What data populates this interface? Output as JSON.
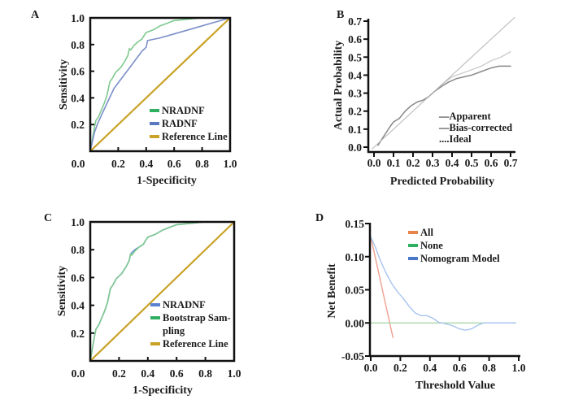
{
  "chart_data": [
    {
      "id": "A",
      "type": "line",
      "panel_label": "A",
      "title": "",
      "xlabel": "1-Specificity",
      "ylabel": "Sensitivity",
      "xlim": [
        0,
        1
      ],
      "ylim": [
        0,
        1
      ],
      "x_ticks": [
        "0.0",
        "0.2",
        "0.4",
        "0.6",
        "0.8",
        "1.0"
      ],
      "y_ticks": [
        "0.2",
        "0.4",
        "0.6",
        "0.8",
        "1.0"
      ],
      "legend_position": "bottom-right",
      "series": [
        {
          "name": "NRADNF",
          "color": "#7fc98f",
          "x": [
            0,
            0.03,
            0.04,
            0.06,
            0.08,
            0.1,
            0.12,
            0.14,
            0.16,
            0.18,
            0.2,
            0.22,
            0.25,
            0.27,
            0.28,
            0.29,
            0.31,
            0.34,
            0.37,
            0.38,
            0.4,
            0.45,
            0.5,
            0.55,
            0.6,
            0.7,
            0.8,
            0.9,
            1.0
          ],
          "y": [
            0,
            0.18,
            0.23,
            0.26,
            0.31,
            0.36,
            0.42,
            0.52,
            0.55,
            0.59,
            0.61,
            0.63,
            0.68,
            0.72,
            0.77,
            0.76,
            0.79,
            0.82,
            0.84,
            0.86,
            0.89,
            0.91,
            0.94,
            0.96,
            0.98,
            0.99,
            1.0,
            1.0,
            1.0
          ]
        },
        {
          "name": "RADNF",
          "color": "#7b8fca",
          "x": [
            0,
            0.03,
            0.05,
            0.08,
            0.12,
            0.17,
            0.22,
            0.27,
            0.32,
            0.37,
            0.4,
            0.41,
            0.5,
            0.6,
            0.7,
            0.8,
            0.9,
            1.0
          ],
          "y": [
            0,
            0.14,
            0.2,
            0.27,
            0.36,
            0.47,
            0.54,
            0.61,
            0.68,
            0.75,
            0.78,
            0.83,
            0.85,
            0.88,
            0.91,
            0.94,
            0.97,
            1.0
          ]
        },
        {
          "name": "Reference Line",
          "color": "#c9a227",
          "x": [
            0,
            1
          ],
          "y": [
            0,
            1
          ]
        }
      ]
    },
    {
      "id": "B",
      "type": "line",
      "panel_label": "B",
      "title": "",
      "xlabel": "Predicted Probability",
      "ylabel": "Actual Probability",
      "xlim": [
        0,
        0.7
      ],
      "ylim": [
        0,
        0.7
      ],
      "x_ticks": [
        "0.0",
        "0.1",
        "0.2",
        "0.3",
        "0.4",
        "0.5",
        "0.6",
        "0.7"
      ],
      "y_ticks": [
        "0.0",
        "0.1",
        "0.2",
        "0.3",
        "0.4",
        "0.5",
        "0.6",
        "0.7"
      ],
      "legend_position": "bottom-right",
      "series": [
        {
          "name": "Apparent",
          "legend_text": "—Apparent",
          "color": "#c8c8c8",
          "x": [
            0.02,
            0.05,
            0.08,
            0.1,
            0.13,
            0.16,
            0.19,
            0.22,
            0.25,
            0.28,
            0.31,
            0.35,
            0.4,
            0.45,
            0.5,
            0.55,
            0.6,
            0.65,
            0.7
          ],
          "y": [
            0.01,
            0.06,
            0.11,
            0.14,
            0.16,
            0.2,
            0.23,
            0.25,
            0.26,
            0.28,
            0.31,
            0.35,
            0.39,
            0.41,
            0.43,
            0.45,
            0.48,
            0.5,
            0.53
          ]
        },
        {
          "name": "Bias-corrected",
          "legend_text": "—Bias-corrected",
          "color": "#8a8a8a",
          "x": [
            0.02,
            0.05,
            0.08,
            0.1,
            0.13,
            0.16,
            0.19,
            0.22,
            0.25,
            0.28,
            0.31,
            0.35,
            0.38,
            0.42,
            0.46,
            0.5,
            0.55,
            0.6,
            0.64,
            0.7
          ],
          "y": [
            0.01,
            0.06,
            0.11,
            0.14,
            0.16,
            0.2,
            0.23,
            0.25,
            0.26,
            0.28,
            0.31,
            0.34,
            0.36,
            0.38,
            0.39,
            0.4,
            0.42,
            0.44,
            0.45,
            0.45
          ]
        },
        {
          "name": "Ideal",
          "legend_text": "....Ideal",
          "color": "#b5b5b5",
          "x": [
            -0.01,
            0.72
          ],
          "y": [
            -0.01,
            0.72
          ]
        }
      ]
    },
    {
      "id": "C",
      "type": "line",
      "panel_label": "C",
      "title": "",
      "xlabel": "1-Specificity",
      "ylabel": "Sensitivity",
      "xlim": [
        0,
        1
      ],
      "ylim": [
        0,
        1
      ],
      "x_ticks": [
        "0.0",
        "0.2",
        "0.4",
        "0.6",
        "0.8",
        "1.0"
      ],
      "y_ticks": [
        "0.2",
        "0.4",
        "0.6",
        "0.8",
        "1.0"
      ],
      "legend_position": "bottom-right",
      "series": [
        {
          "name": "NRADNF",
          "color": "#6b8fd0",
          "x": [
            0,
            0.03,
            0.04,
            0.06,
            0.08,
            0.1,
            0.12,
            0.14,
            0.16,
            0.18,
            0.2,
            0.22,
            0.25,
            0.27,
            0.28,
            0.29,
            0.31,
            0.34,
            0.37,
            0.38,
            0.4,
            0.45,
            0.5,
            0.55,
            0.6,
            0.7,
            0.8,
            0.9,
            1.0
          ],
          "y": [
            0,
            0.18,
            0.23,
            0.26,
            0.31,
            0.36,
            0.42,
            0.52,
            0.55,
            0.59,
            0.61,
            0.63,
            0.68,
            0.72,
            0.77,
            0.78,
            0.8,
            0.82,
            0.84,
            0.86,
            0.89,
            0.91,
            0.94,
            0.96,
            0.98,
            0.99,
            1.0,
            1.0,
            1.0
          ]
        },
        {
          "name": "Bootstrap Sampling",
          "legend_text": [
            "Bootstrap Sam-",
            "pling"
          ],
          "color": "#7fc98f",
          "x": [
            0,
            0.03,
            0.04,
            0.06,
            0.08,
            0.1,
            0.12,
            0.14,
            0.16,
            0.18,
            0.2,
            0.22,
            0.25,
            0.27,
            0.28,
            0.29,
            0.31,
            0.34,
            0.37,
            0.38,
            0.4,
            0.45,
            0.5,
            0.55,
            0.6,
            0.7,
            0.8,
            0.9,
            1.0
          ],
          "y": [
            0,
            0.18,
            0.23,
            0.26,
            0.31,
            0.36,
            0.42,
            0.52,
            0.55,
            0.59,
            0.61,
            0.63,
            0.68,
            0.72,
            0.77,
            0.76,
            0.79,
            0.82,
            0.84,
            0.86,
            0.89,
            0.91,
            0.94,
            0.96,
            0.98,
            0.99,
            1.0,
            1.0,
            1.0
          ]
        },
        {
          "name": "Reference Line",
          "color": "#c9a227",
          "x": [
            0,
            1
          ],
          "y": [
            0,
            1
          ]
        }
      ]
    },
    {
      "id": "D",
      "type": "line",
      "panel_label": "D",
      "title": "",
      "xlabel": "Threshold Value",
      "ylabel": "Net Benefit",
      "xlim": [
        0,
        1
      ],
      "ylim": [
        -0.05,
        0.15
      ],
      "x_ticks": [
        "0.0",
        "0.2",
        "0.4",
        "0.6",
        "0.8",
        "1.0"
      ],
      "y_ticks": [
        "-0.05",
        "0.00",
        "0.05",
        "0.10",
        "0.15"
      ],
      "legend_position": "top-right",
      "series": [
        {
          "name": "All",
          "color": "#f0a090",
          "legend_color": "#e8844a",
          "x": [
            0,
            0.15
          ],
          "y": [
            0.13,
            -0.022
          ]
        },
        {
          "name": "None",
          "color": "#a8d8a8",
          "legend_color": "#2eb060",
          "x": [
            0,
            0.98
          ],
          "y": [
            0,
            0
          ]
        },
        {
          "name": "Nomogram  Model",
          "color": "#a8c4ef",
          "legend_color": "#4a78c8",
          "x": [
            0,
            0.03,
            0.06,
            0.1,
            0.14,
            0.18,
            0.22,
            0.26,
            0.3,
            0.34,
            0.38,
            0.42,
            0.46,
            0.5,
            0.55,
            0.6,
            0.64,
            0.68,
            0.72,
            0.76,
            0.8,
            0.9,
            0.98
          ],
          "y": [
            0.13,
            0.115,
            0.097,
            0.077,
            0.06,
            0.047,
            0.037,
            0.025,
            0.015,
            0.011,
            0.011,
            0.007,
            0.001,
            -0.001,
            -0.004,
            -0.009,
            -0.011,
            -0.009,
            -0.004,
            0.0,
            0.0,
            0.0,
            0.0
          ]
        }
      ]
    }
  ]
}
